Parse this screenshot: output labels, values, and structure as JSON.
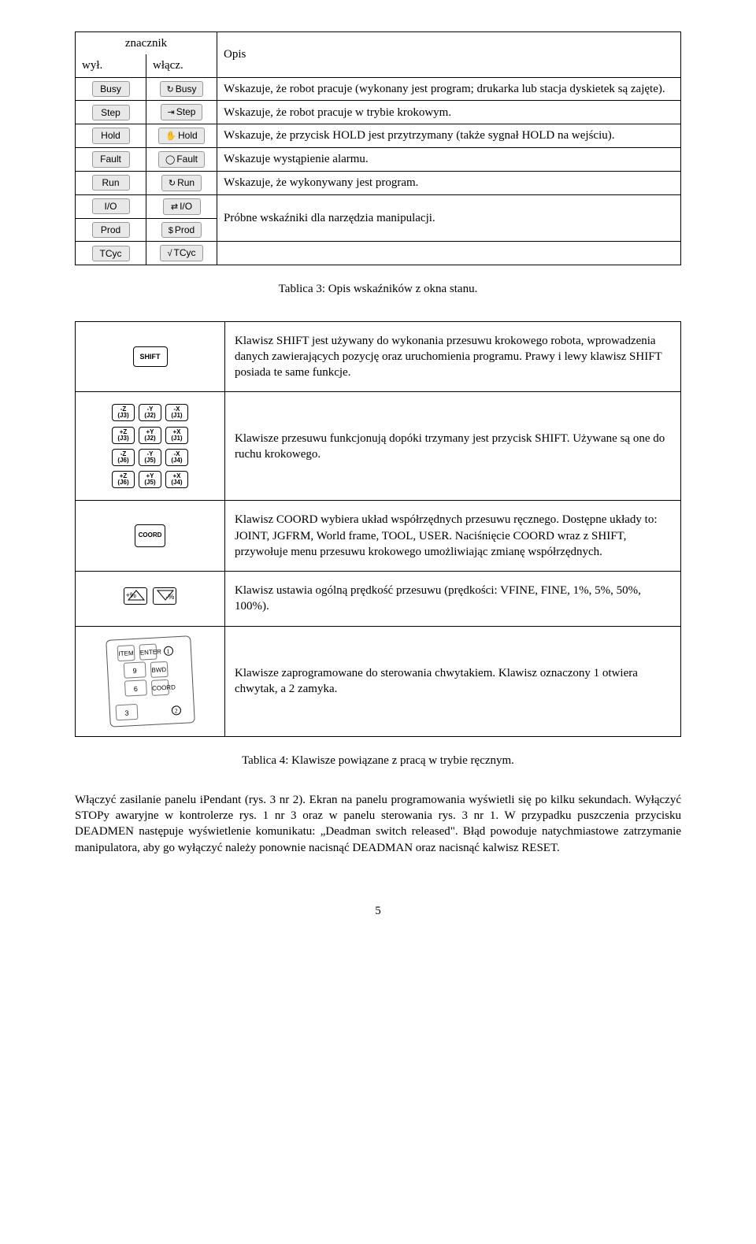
{
  "table3": {
    "headers": {
      "marker": "znacznik",
      "off": "wył.",
      "on": "włącz.",
      "desc": "Opis"
    },
    "rows": [
      {
        "off": "Busy",
        "on": "Busy",
        "on_icon": "↻",
        "desc": "Wskazuje, że robot pracuje (wykonany jest program; drukarka lub stacja dyskietek są zajęte)."
      },
      {
        "off": "Step",
        "on": "Step",
        "on_icon": "⇥",
        "desc": "Wskazuje, że robot pracuje w trybie krokowym."
      },
      {
        "off": "Hold",
        "on": "Hold",
        "on_icon": "✋",
        "desc": "Wskazuje, że przycisk HOLD jest przytrzymany (także sygnał HOLD na wejściu)."
      },
      {
        "off": "Fault",
        "on": "Fault",
        "on_icon": "◯",
        "desc": "Wskazuje wystąpienie alarmu."
      },
      {
        "off": "Run",
        "on": "Run",
        "on_icon": "↻",
        "desc": "Wskazuje, że wykonywany jest program."
      }
    ],
    "group": {
      "r1": {
        "off": "I/O",
        "on": "I/O",
        "on_icon": "⇄"
      },
      "r2": {
        "off": "Prod",
        "on": "Prod",
        "on_icon": "$"
      },
      "desc": "Próbne wskaźniki dla narzędzia manipulacji."
    },
    "last": {
      "off": "TCyc",
      "on": "TCyc",
      "on_icon": "√"
    },
    "caption": "Tablica 3: Opis wskaźników z okna stanu."
  },
  "table4": {
    "rows": [
      {
        "key": {
          "type": "shift",
          "label": "SHIFT"
        },
        "desc": "Klawisz SHIFT jest używany do wykonania przesuwu krokowego robota, wprowadzenia danych zawierających pozycję oraz uruchomienia programu. Prawy i lewy klawisz SHIFT posiada te same funkcje."
      },
      {
        "key": {
          "type": "jog",
          "grid": [
            [
              "-Z\n(J3)",
              "-Y\n(J2)",
              "-X\n(J1)"
            ],
            [
              "+Z\n(J3)",
              "+Y\n(J2)",
              "+X\n(J1)"
            ],
            [
              "-Z\n(J6)",
              "-Y\n(J5)",
              "-X\n(J4)"
            ],
            [
              "+Z\n(J6)",
              "+Y\n(J5)",
              "+X\n(J4)"
            ]
          ]
        },
        "desc": "Klawisze przesuwu funkcjonują dopóki trzymany jest przycisk SHIFT. Używane są one do ruchu krokowego."
      },
      {
        "key": {
          "type": "coord",
          "label": "COORD"
        },
        "desc": "Klawisz COORD wybiera układ współrzędnych przesuwu ręcznego. Dostępne układy to: JOINT, JGFRM, World frame, TOOL, USER. Naciśnięcie COORD wraz z SHIFT, przywołuje menu przesuwu krokowego umożliwiając zmianę współrzędnych."
      },
      {
        "key": {
          "type": "pct",
          "plus": "+%",
          "minus": "-%"
        },
        "desc": "Klawisz ustawia ogólną prędkość przesuwu (prędkości: VFINE, FINE, 1%, 5%, 50%, 100%)."
      },
      {
        "key": {
          "type": "keypad",
          "labels": {
            "item": "ITEM",
            "enter": "ENTER",
            "bwd": "BWD",
            "coord": "COORD",
            "n9": "9",
            "n6": "6",
            "n3": "3",
            "c1": "1",
            "c2": "2"
          }
        },
        "desc": "Klawisze zaprogramowane do sterowania chwytakiem. Klawisz oznaczony 1 otwiera chwytak, a 2 zamyka."
      }
    ],
    "caption": "Tablica 4: Klawisze powiązane z pracą w trybie ręcznym."
  },
  "para1": "Włączyć zasilanie panelu iPendant (rys. 3 nr 2). Ekran na panelu programowania wyświetli się po kilku sekundach. Wyłączyć STOPy awaryjne w kontrolerze rys. 1 nr 3 oraz w panelu sterowania rys. 3 nr 1. W przypadku puszczenia przycisku DEADMEN następuje wyświetlenie komunikatu: „Deadman switch released\". Błąd powoduje natychmiastowe zatrzymanie manipulatora, aby go wyłączyć należy ponownie nacisnąć DEADMAN oraz nacisnąć kalwisz RESET.",
  "pageNum": "5"
}
